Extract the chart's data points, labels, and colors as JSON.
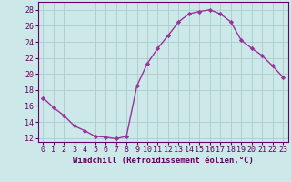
{
  "x": [
    0,
    1,
    2,
    3,
    4,
    5,
    6,
    7,
    8,
    9,
    10,
    11,
    12,
    13,
    14,
    15,
    16,
    17,
    18,
    19,
    20,
    21,
    22,
    23
  ],
  "y": [
    17.0,
    15.8,
    14.8,
    13.5,
    12.9,
    12.2,
    12.1,
    11.9,
    12.2,
    18.5,
    21.3,
    23.2,
    24.8,
    26.5,
    27.5,
    27.8,
    28.0,
    27.5,
    26.5,
    24.2,
    23.2,
    22.3,
    21.0,
    19.6
  ],
  "line_color": "#993399",
  "marker": "D",
  "marker_size": 2.2,
  "bg_color": "#cce8e8",
  "grid_color": "#aacccc",
  "xlabel": "Windchill (Refroidissement éolien,°C)",
  "xlim": [
    -0.5,
    23.5
  ],
  "ylim": [
    11.5,
    29
  ],
  "yticks": [
    12,
    14,
    16,
    18,
    20,
    22,
    24,
    26,
    28
  ],
  "xticks": [
    0,
    1,
    2,
    3,
    4,
    5,
    6,
    7,
    8,
    9,
    10,
    11,
    12,
    13,
    14,
    15,
    16,
    17,
    18,
    19,
    20,
    21,
    22,
    23
  ],
  "xlabel_fontsize": 6.5,
  "tick_fontsize": 6.0,
  "line_width": 1.0,
  "spine_color": "#660066",
  "tick_color": "#660066"
}
